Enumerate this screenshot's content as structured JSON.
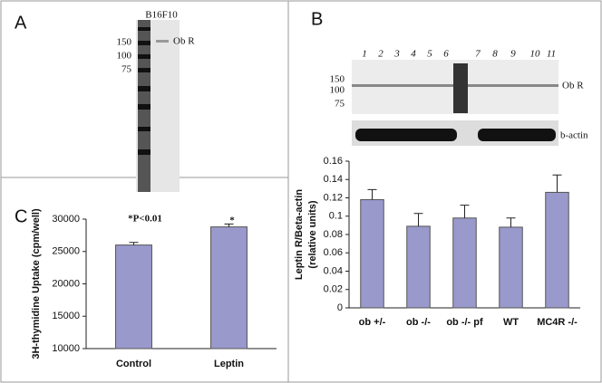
{
  "panels": {
    "A": {
      "label": "A",
      "cell_line": "B16F10",
      "band_label": "Ob R",
      "markers": [
        "150",
        "100",
        "75"
      ]
    },
    "B": {
      "label": "B",
      "lanes": [
        "1",
        "2",
        "3",
        "4",
        "5",
        "6",
        "7",
        "8",
        "9",
        "10",
        "11"
      ],
      "markers": [
        "150",
        "100",
        "75"
      ],
      "band_label": "Ob R",
      "control_label": "b-actin"
    },
    "C": {
      "label": "C"
    }
  },
  "chart_data": [
    {
      "type": "bar",
      "categories": [
        "ob +/-",
        "ob -/-",
        "ob -/- pf",
        "WT",
        "MC4R -/-"
      ],
      "values": [
        0.118,
        0.089,
        0.098,
        0.088,
        0.126
      ],
      "errors": [
        0.011,
        0.014,
        0.014,
        0.01,
        0.019
      ],
      "color": "#9999cc",
      "ylabel": [
        "Leptin R/Beta-actin",
        "(relative units)"
      ],
      "ylim": [
        0,
        0.16
      ],
      "yticks": [
        0,
        0.02,
        0.04,
        0.06,
        0.08,
        0.1,
        0.12,
        0.14,
        0.16
      ]
    },
    {
      "type": "bar",
      "categories": [
        "Control",
        "Leptin"
      ],
      "values": [
        26000,
        28800
      ],
      "errors": [
        400,
        450
      ],
      "color": "#9999cc",
      "ylabel": [
        "3H-thymidine Uptake (cpm/well)"
      ],
      "annotations": [
        "*P<0.01",
        "*"
      ],
      "ylim": [
        10000,
        30000
      ],
      "yticks": [
        10000,
        15000,
        20000,
        25000,
        30000
      ]
    }
  ]
}
